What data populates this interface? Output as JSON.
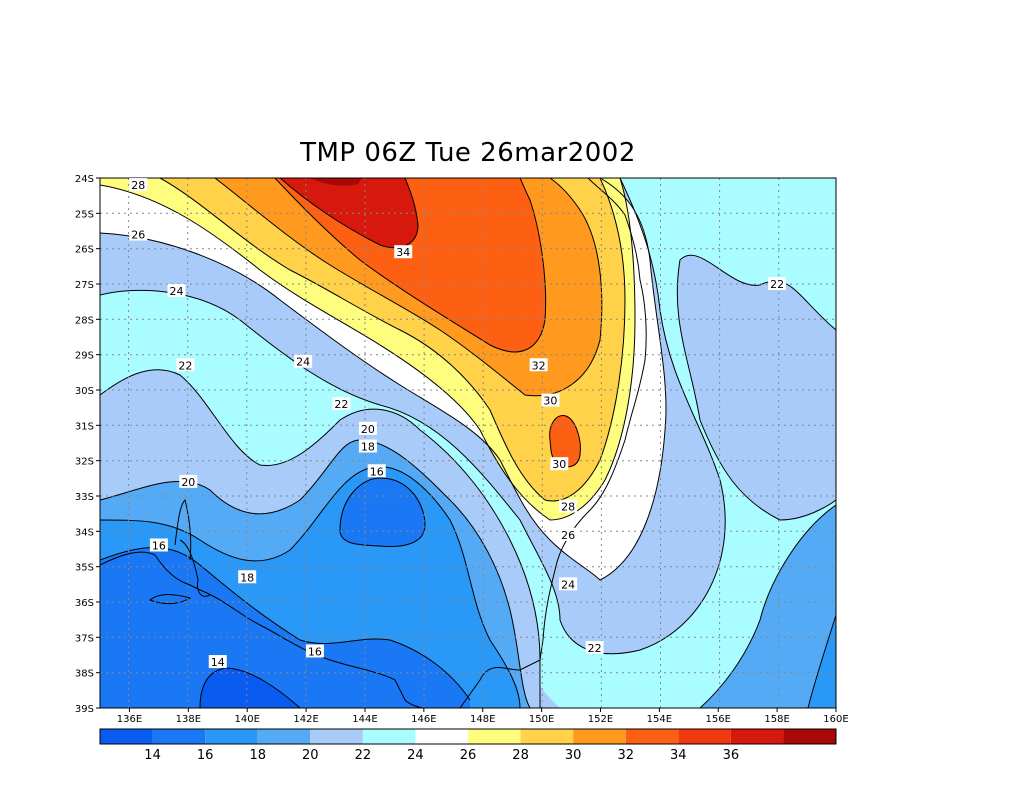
{
  "title": "TMP 06Z Tue 26mar2002",
  "map": {
    "lat_labels": [
      "24S",
      "25S",
      "26S",
      "27S",
      "28S",
      "29S",
      "30S",
      "31S",
      "32S",
      "33S",
      "34S",
      "35S",
      "36S",
      "37S",
      "38S",
      "39S"
    ],
    "lon_labels": [
      "136E",
      "138E",
      "140E",
      "142E",
      "144E",
      "146E",
      "148E",
      "150E",
      "152E",
      "154E",
      "156E",
      "158E",
      "160E"
    ],
    "contour_labels": [
      {
        "text": "28",
        "lon": 136.3,
        "lat": -24.2
      },
      {
        "text": "26",
        "lon": 136.3,
        "lat": -25.6
      },
      {
        "text": "24",
        "lon": 137.6,
        "lat": -27.2
      },
      {
        "text": "22",
        "lon": 137.9,
        "lat": -29.3
      },
      {
        "text": "24",
        "lon": 141.9,
        "lat": -29.2
      },
      {
        "text": "34",
        "lon": 145.3,
        "lat": -26.1
      },
      {
        "text": "32",
        "lon": 149.9,
        "lat": -29.3
      },
      {
        "text": "30",
        "lon": 150.3,
        "lat": -30.3
      },
      {
        "text": "30",
        "lon": 150.6,
        "lat": -32.1
      },
      {
        "text": "28",
        "lon": 150.9,
        "lat": -33.3
      },
      {
        "text": "26",
        "lon": 150.9,
        "lat": -34.1
      },
      {
        "text": "24",
        "lon": 150.9,
        "lat": -35.5
      },
      {
        "text": "22",
        "lon": 151.8,
        "lat": -37.3
      },
      {
        "text": "22",
        "lon": 143.2,
        "lat": -30.4
      },
      {
        "text": "20",
        "lon": 144.1,
        "lat": -31.1
      },
      {
        "text": "18",
        "lon": 144.1,
        "lat": -31.6
      },
      {
        "text": "16",
        "lon": 144.4,
        "lat": -32.3
      },
      {
        "text": "20",
        "lon": 138.0,
        "lat": -32.6
      },
      {
        "text": "16",
        "lon": 137.0,
        "lat": -34.4
      },
      {
        "text": "18",
        "lon": 140.0,
        "lat": -35.3
      },
      {
        "text": "16",
        "lon": 142.3,
        "lat": -37.4
      },
      {
        "text": "14",
        "lon": 139.0,
        "lat": -37.7
      },
      {
        "text": "22",
        "lon": 158.0,
        "lat": -27.0
      }
    ]
  },
  "colorbar": {
    "labels": [
      "14",
      "16",
      "18",
      "20",
      "22",
      "24",
      "26",
      "28",
      "30",
      "32",
      "34",
      "36"
    ],
    "colors": [
      "#0a5cf0",
      "#1a78f5",
      "#2a98f7",
      "#55aaf5",
      "#a8cbfa",
      "#a9fcff",
      "#ffffff",
      "#fffd7d",
      "#ffd24a",
      "#ff9a1e",
      "#fe6013",
      "#f03a0e",
      "#d7180c",
      "#a80808"
    ]
  }
}
